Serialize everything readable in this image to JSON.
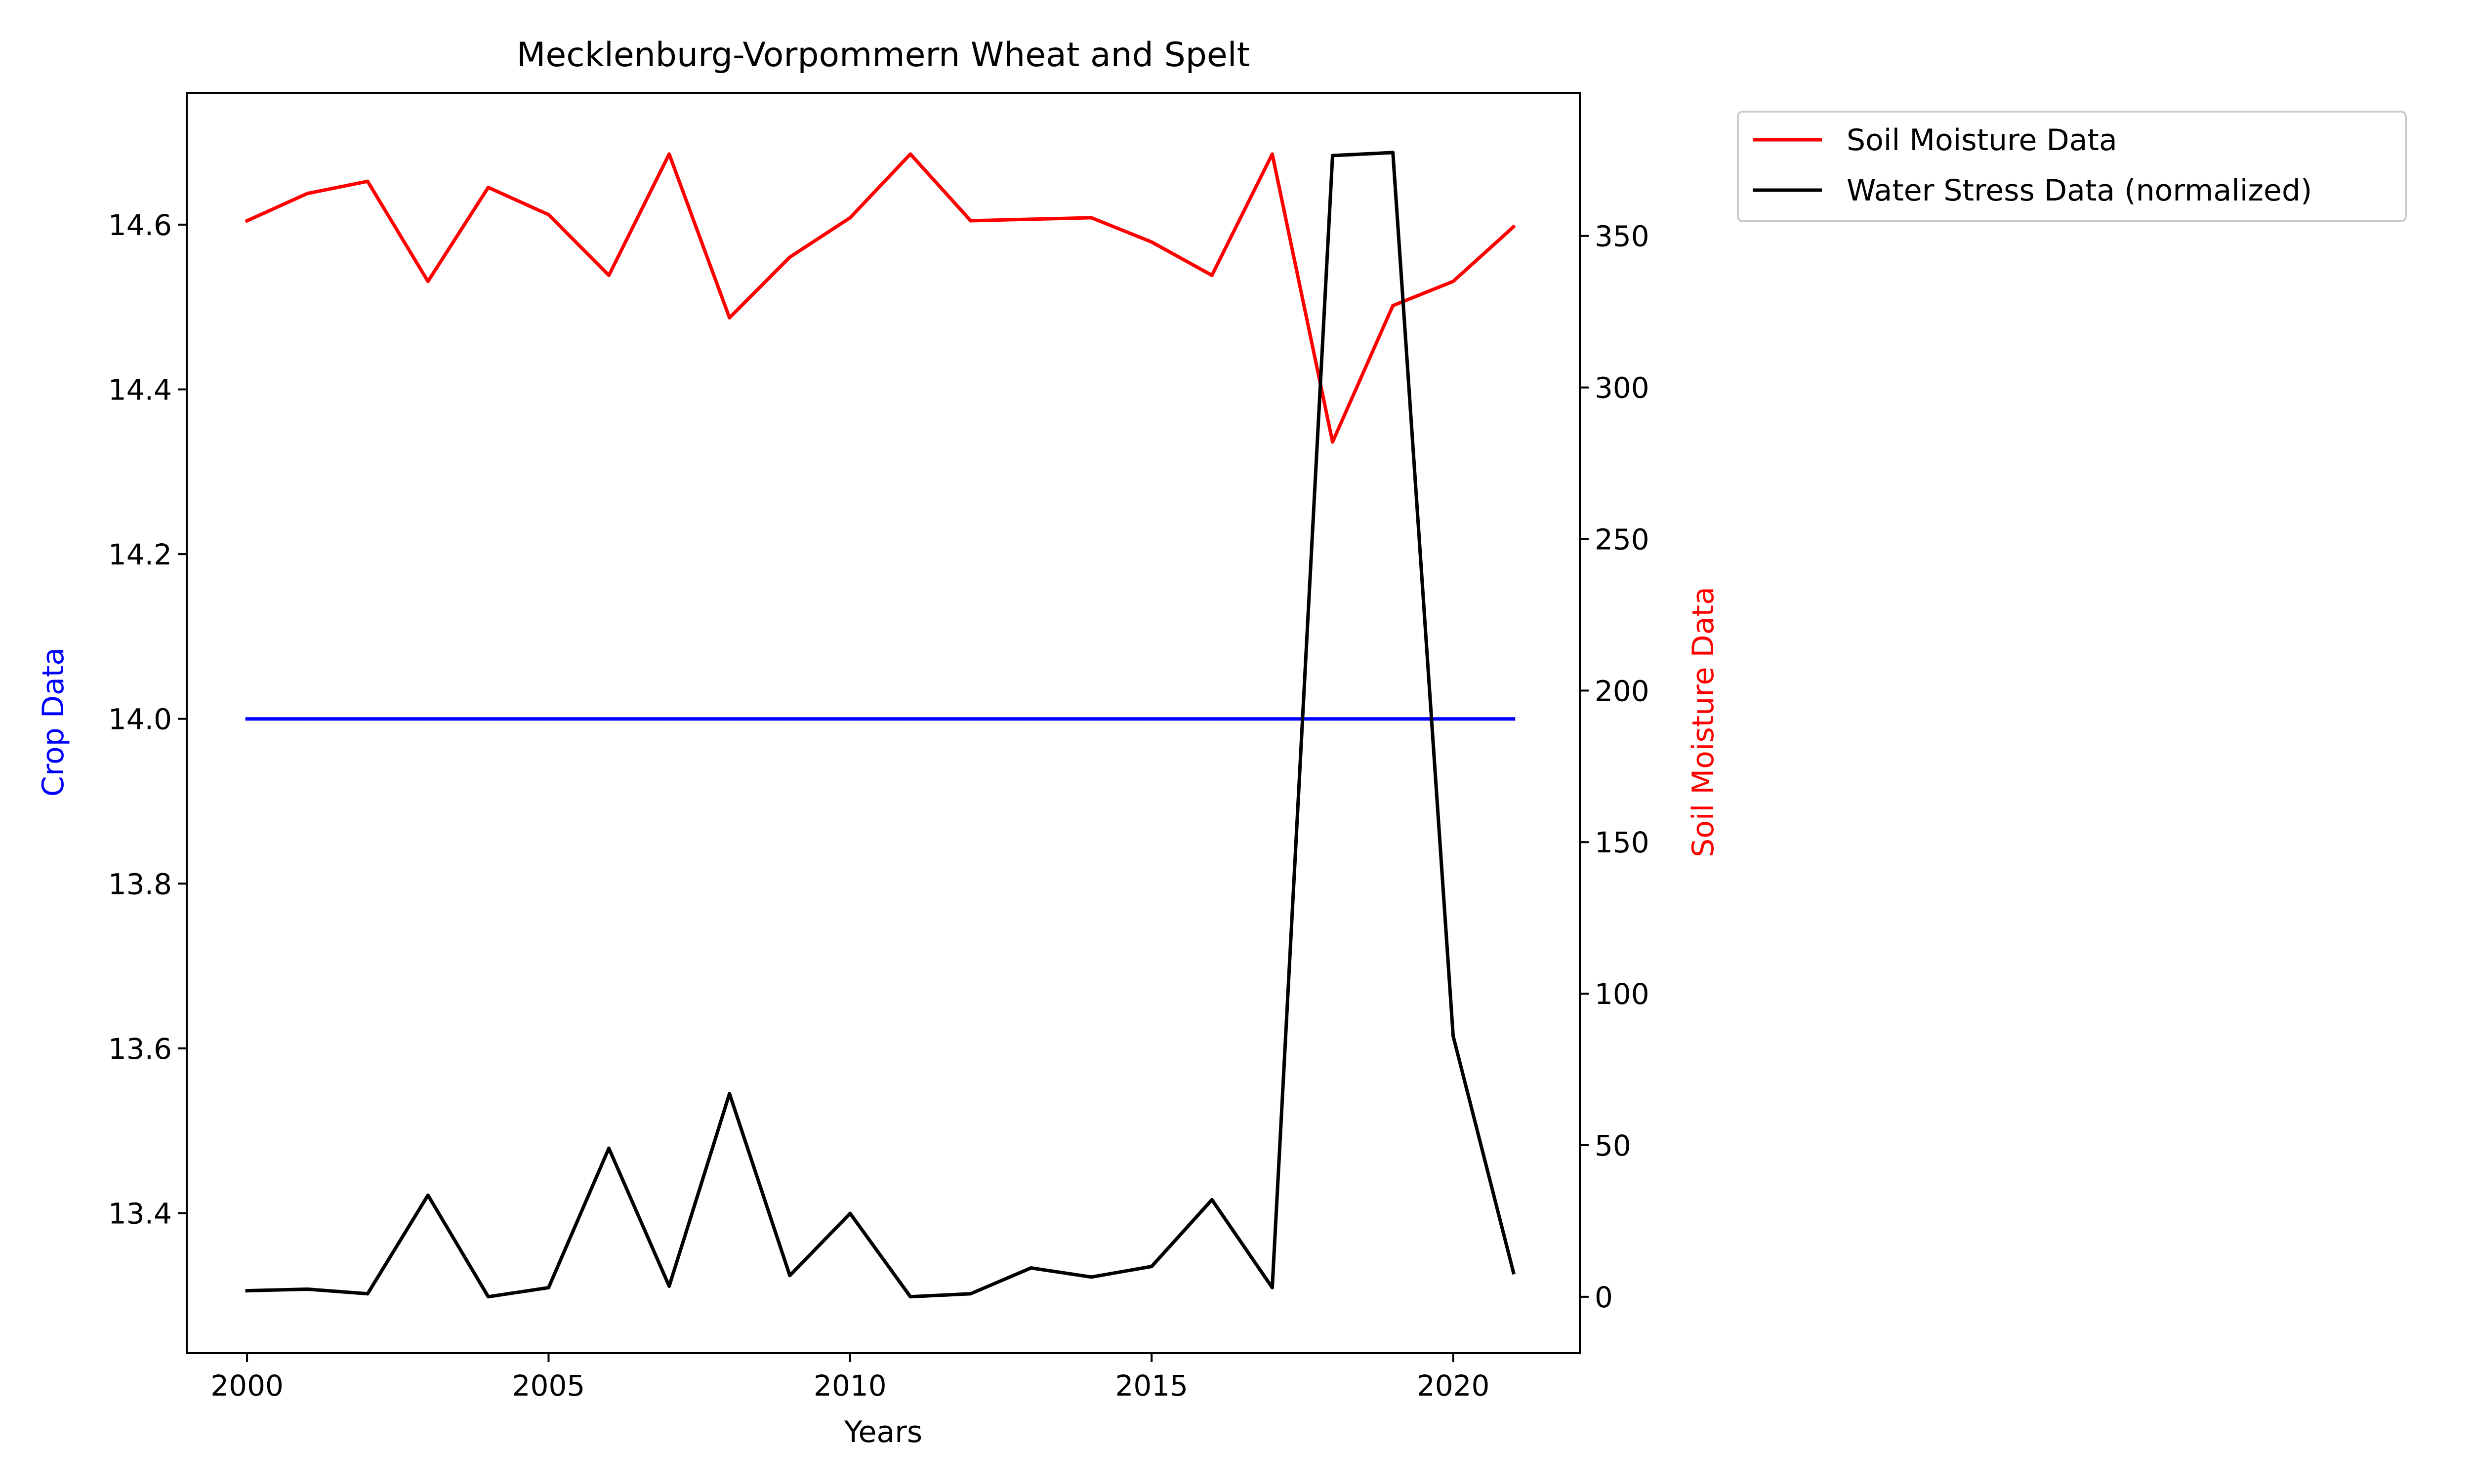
{
  "chart_data": {
    "type": "line",
    "title": "Mecklenburg-Vorpommern Wheat and Spelt",
    "xlabel": "Years",
    "ylabel_left": "Crop Data",
    "ylabel_right": "Soil Moisture Data",
    "x": [
      2000,
      2001,
      2002,
      2003,
      2004,
      2005,
      2006,
      2007,
      2008,
      2009,
      2010,
      2011,
      2012,
      2013,
      2014,
      2015,
      2016,
      2017,
      2018,
      2019,
      2020,
      2021
    ],
    "xticks": [
      2000,
      2005,
      2010,
      2015,
      2020
    ],
    "xlim": [
      1999,
      2022.1
    ],
    "left_axis": {
      "ylim": [
        13.23,
        14.76
      ],
      "ticks": [
        13.4,
        13.6,
        13.8,
        14.0,
        14.2,
        14.4,
        14.6
      ],
      "tick_labels": [
        "13.4",
        "13.6",
        "13.8",
        "14.0",
        "14.2",
        "14.4",
        "14.6"
      ],
      "label_color": "#0000ff"
    },
    "right_axis": {
      "ylim": [
        -18.6,
        397.2
      ],
      "ticks": [
        0,
        50,
        100,
        150,
        200,
        250,
        300,
        350
      ],
      "tick_labels": [
        "0",
        "50",
        "100",
        "150",
        "200",
        "250",
        "300",
        "350"
      ],
      "label_color": "#ff0000"
    },
    "series": [
      {
        "key": "crop",
        "axis": "left",
        "color": "#0000ff",
        "values": [
          14.0,
          14.0,
          14.0,
          14.0,
          14.0,
          14.0,
          14.0,
          14.0,
          14.0,
          14.0,
          14.0,
          14.0,
          14.0,
          14.0,
          14.0,
          14.0,
          14.0,
          14.0,
          14.0,
          14.0,
          14.0,
          14.0
        ]
      },
      {
        "key": "soil",
        "name": "Soil Moisture Data",
        "axis": "right",
        "color": "#ff0000",
        "values": [
          355,
          364,
          368,
          335,
          366,
          357,
          337,
          377,
          323,
          343,
          356,
          377,
          355,
          355.5,
          356,
          348,
          337,
          377,
          282,
          327,
          335,
          353
        ]
      },
      {
        "key": "stress",
        "name": "Water Stress Data (normalized)",
        "axis": "right",
        "color": "#000000",
        "values": [
          2,
          2.5,
          1,
          33.5,
          0,
          3,
          49,
          3.5,
          67,
          7,
          27.5,
          0,
          1,
          9.5,
          6.5,
          10,
          32,
          3,
          376.5,
          377.5,
          86,
          8
        ]
      }
    ],
    "legend": {
      "placement": "outside top-right",
      "entries": [
        "Soil Moisture Data",
        "Water Stress Data (normalized)"
      ]
    }
  }
}
